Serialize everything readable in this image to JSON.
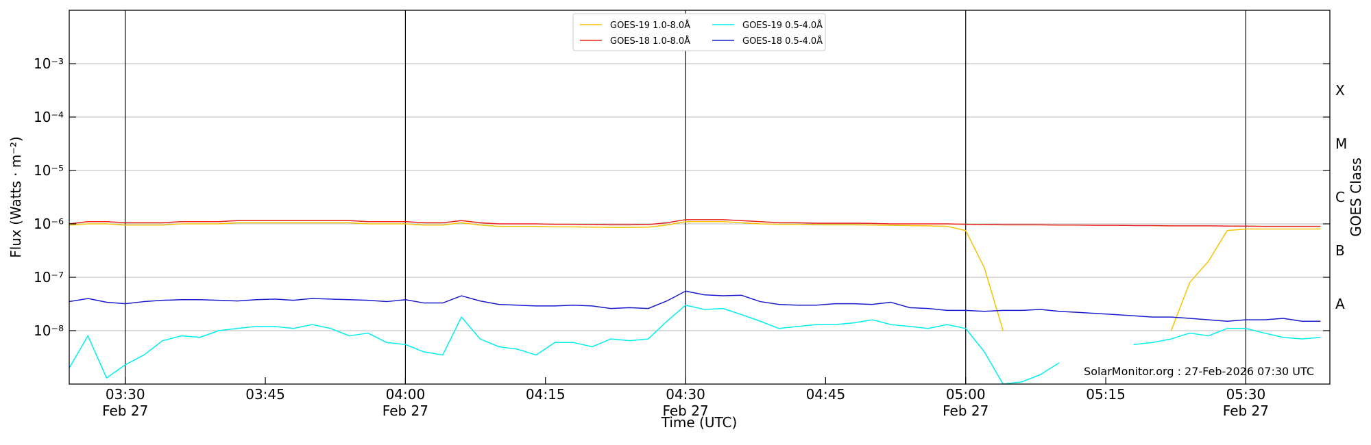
{
  "chart_data": {
    "type": "line",
    "x_label": "Time (UTC)",
    "y_label": "Flux (Watts · m⁻²)",
    "y2_label": "GOES Class",
    "annotation": "SolarMonitor.org : 27-Feb-2026 07:30 UTC",
    "log_scale": true,
    "grid": true,
    "legend": "top",
    "xlim": [
      "03:24",
      "05:39"
    ],
    "xticks": [
      {
        "value": "03:30",
        "label": [
          "03:30",
          "Feb 27"
        ]
      },
      "03:45",
      {
        "value": "04:00",
        "label": [
          "04:00",
          "Feb 27"
        ]
      },
      "04:15",
      {
        "value": "04:30",
        "label": [
          "04:30",
          "Feb 27"
        ]
      },
      "04:45",
      {
        "value": "05:00",
        "label": [
          "05:00",
          "Feb 27"
        ]
      },
      "05:15",
      {
        "value": "05:30",
        "label": [
          "05:30",
          "Feb 27"
        ]
      }
    ],
    "ylim": [
      1e-09,
      0.01
    ],
    "yticks": [
      {
        "value": 1e-08,
        "label": "10⁻⁸"
      },
      {
        "value": 1e-07,
        "label": "10⁻⁷"
      },
      {
        "value": 1e-06,
        "label": "10⁻⁶"
      },
      {
        "value": 1e-05,
        "label": "10⁻⁵"
      },
      {
        "value": 0.0001,
        "label": "10⁻⁴"
      },
      {
        "value": 0.001,
        "label": "10⁻³"
      }
    ],
    "y2lim": [
      1e-09,
      0.01
    ],
    "y2ticks": [
      {
        "value": 3.16e-08,
        "label": "A"
      },
      {
        "value": 3.16e-07,
        "label": "B"
      },
      {
        "value": 3.16e-06,
        "label": "C"
      },
      {
        "value": 3.16e-05,
        "label": "M"
      },
      {
        "value": 0.000316,
        "label": "X"
      }
    ],
    "x": [
      "03:24",
      "03:26",
      "03:28",
      "03:30",
      "03:32",
      "03:34",
      "03:36",
      "03:38",
      "03:40",
      "03:42",
      "03:44",
      "03:46",
      "03:48",
      "03:50",
      "03:52",
      "03:54",
      "03:56",
      "03:58",
      "04:00",
      "04:02",
      "04:04",
      "04:06",
      "04:08",
      "04:10",
      "04:12",
      "04:14",
      "04:16",
      "04:18",
      "04:20",
      "04:22",
      "04:24",
      "04:26",
      "04:28",
      "04:30",
      "04:32",
      "04:34",
      "04:36",
      "04:38",
      "04:40",
      "04:42",
      "04:44",
      "04:46",
      "04:48",
      "04:50",
      "04:52",
      "04:54",
      "04:56",
      "04:58",
      "05:00",
      "05:02",
      "05:04",
      "05:06",
      "05:08",
      "05:10",
      "05:12",
      "05:14",
      "05:16",
      "05:18",
      "05:20",
      "05:22",
      "05:24",
      "05:26",
      "05:28",
      "05:30",
      "05:32",
      "05:34",
      "05:36",
      "05:38"
    ],
    "series": [
      {
        "name": "GOES-19 1.0-8.0Å",
        "color": "#f5c400",
        "values": [
          9.5e-07,
          1e-06,
          1e-06,
          9.5e-07,
          9.5e-07,
          9.5e-07,
          1e-06,
          1e-06,
          1e-06,
          1.05e-06,
          1.05e-06,
          1.05e-06,
          1.05e-06,
          1.05e-06,
          1.05e-06,
          1.05e-06,
          1e-06,
          1e-06,
          1e-06,
          9.5e-07,
          9.5e-07,
          1.05e-06,
          9.5e-07,
          9e-07,
          9e-07,
          9e-07,
          8.8e-07,
          8.8e-07,
          8.7e-07,
          8.6e-07,
          8.6e-07,
          8.7e-07,
          9.5e-07,
          1.1e-06,
          1.1e-06,
          1.1e-06,
          1.05e-06,
          1e-06,
          9.8e-07,
          9.8e-07,
          9.6e-07,
          9.6e-07,
          9.6e-07,
          9.5e-07,
          9.4e-07,
          9.3e-07,
          9.2e-07,
          9e-07,
          7.5e-07,
          1.5e-07,
          1e-08,
          null,
          null,
          null,
          null,
          null,
          null,
          null,
          null,
          1e-08,
          8e-08,
          2e-07,
          7.5e-07,
          8e-07,
          8e-07,
          8e-07,
          8e-07,
          8e-07
        ]
      },
      {
        "name": "GOES-18 1.0-8.0Å",
        "color": "#e8201a",
        "values": [
          1e-06,
          1.1e-06,
          1.1e-06,
          1.05e-06,
          1.05e-06,
          1.05e-06,
          1.1e-06,
          1.1e-06,
          1.1e-06,
          1.15e-06,
          1.15e-06,
          1.15e-06,
          1.15e-06,
          1.15e-06,
          1.15e-06,
          1.15e-06,
          1.1e-06,
          1.1e-06,
          1.1e-06,
          1.05e-06,
          1.05e-06,
          1.15e-06,
          1.05e-06,
          1e-06,
          1e-06,
          1e-06,
          9.8e-07,
          9.8e-07,
          9.7e-07,
          9.6e-07,
          9.6e-07,
          9.7e-07,
          1.05e-06,
          1.2e-06,
          1.2e-06,
          1.2e-06,
          1.15e-06,
          1.1e-06,
          1.05e-06,
          1.05e-06,
          1.03e-06,
          1.03e-06,
          1.03e-06,
          1.02e-06,
          1e-06,
          1e-06,
          1e-06,
          1e-06,
          9.8e-07,
          9.7e-07,
          9.6e-07,
          9.6e-07,
          9.6e-07,
          9.5e-07,
          9.5e-07,
          9.4e-07,
          9.4e-07,
          9.3e-07,
          9.3e-07,
          9.2e-07,
          9.2e-07,
          9.2e-07,
          9.1e-07,
          9.1e-07,
          9e-07,
          9e-07,
          9e-07,
          9e-07
        ]
      },
      {
        "name": "GOES-19 0.5-4.0Å",
        "color": "#00eeee",
        "values": [
          2e-09,
          8e-09,
          1.3e-09,
          2.3e-09,
          3.5e-09,
          6.5e-09,
          8e-09,
          7.5e-09,
          1e-08,
          1.1e-08,
          1.2e-08,
          1.2e-08,
          1.1e-08,
          1.3e-08,
          1.1e-08,
          8e-09,
          9e-09,
          6e-09,
          5.5e-09,
          4e-09,
          3.5e-09,
          1.8e-08,
          7e-09,
          5e-09,
          4.5e-09,
          3.5e-09,
          6e-09,
          6e-09,
          5e-09,
          7e-09,
          6.5e-09,
          7e-09,
          1.5e-08,
          3e-08,
          2.5e-08,
          2.6e-08,
          2e-08,
          1.5e-08,
          1.1e-08,
          1.2e-08,
          1.3e-08,
          1.3e-08,
          1.4e-08,
          1.6e-08,
          1.3e-08,
          1.2e-08,
          1.1e-08,
          1.3e-08,
          1.1e-08,
          4e-09,
          1e-09,
          1.1e-09,
          1.5e-09,
          2.5e-09,
          null,
          null,
          null,
          5.5e-09,
          6e-09,
          7e-09,
          9e-09,
          8e-09,
          1.1e-08,
          1.1e-08,
          9e-09,
          7.5e-09,
          7e-09,
          7.5e-09
        ]
      },
      {
        "name": "GOES-18 0.5-4.0Å",
        "color": "#1a1acc",
        "values": [
          3.5e-08,
          4e-08,
          3.4e-08,
          3.2e-08,
          3.5e-08,
          3.7e-08,
          3.8e-08,
          3.8e-08,
          3.7e-08,
          3.6e-08,
          3.8e-08,
          3.9e-08,
          3.7e-08,
          4e-08,
          3.9e-08,
          3.8e-08,
          3.7e-08,
          3.5e-08,
          3.8e-08,
          3.3e-08,
          3.3e-08,
          4.5e-08,
          3.6e-08,
          3.1e-08,
          3e-08,
          2.9e-08,
          2.9e-08,
          3e-08,
          2.9e-08,
          2.6e-08,
          2.7e-08,
          2.6e-08,
          3.6e-08,
          5.5e-08,
          4.7e-08,
          4.5e-08,
          4.6e-08,
          3.5e-08,
          3.1e-08,
          3e-08,
          3e-08,
          3.2e-08,
          3.2e-08,
          3.1e-08,
          3.4e-08,
          2.7e-08,
          2.6e-08,
          2.4e-08,
          2.4e-08,
          2.3e-08,
          2.4e-08,
          2.4e-08,
          2.5e-08,
          2.3e-08,
          2.2e-08,
          2.1e-08,
          2e-08,
          1.9e-08,
          1.8e-08,
          1.8e-08,
          1.7e-08,
          1.6e-08,
          1.5e-08,
          1.6e-08,
          1.6e-08,
          1.7e-08,
          1.5e-08,
          1.5e-08
        ]
      }
    ]
  }
}
